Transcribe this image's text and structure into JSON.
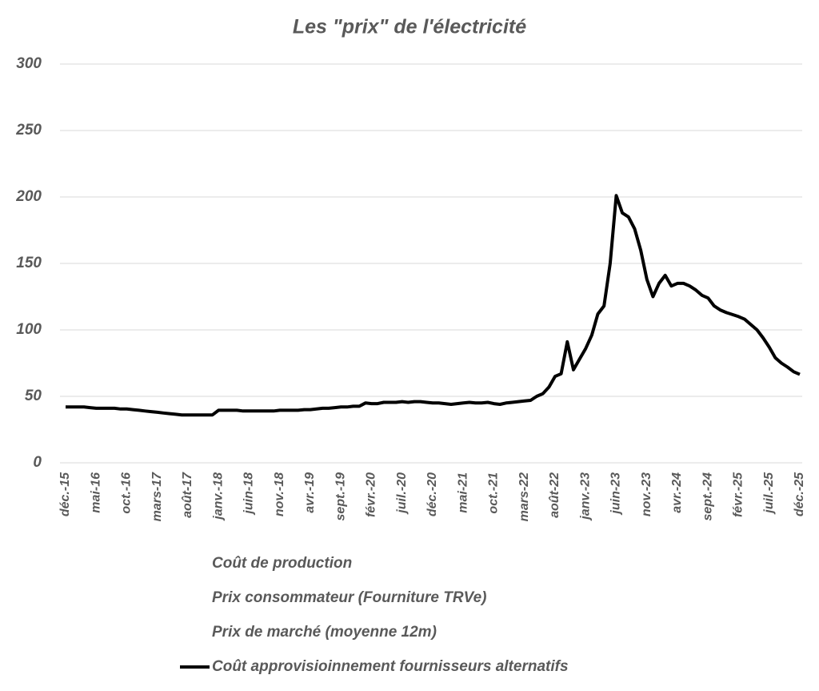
{
  "chart_data": {
    "type": "line",
    "title": "Les \"prix\" de l'électricité",
    "categories": [
      "déc.-15",
      null,
      null,
      null,
      null,
      "mai-16",
      null,
      null,
      null,
      null,
      "oct.-16",
      null,
      null,
      null,
      null,
      "mars-17",
      null,
      null,
      null,
      null,
      "août-17",
      null,
      null,
      null,
      null,
      "janv.-18",
      null,
      null,
      null,
      null,
      "juin-18",
      null,
      null,
      null,
      null,
      "nov.-18",
      null,
      null,
      null,
      null,
      "avr.-19",
      null,
      null,
      null,
      null,
      "sept.-19",
      null,
      null,
      null,
      null,
      "févr.-20",
      null,
      null,
      null,
      null,
      "juil.-20",
      null,
      null,
      null,
      null,
      "déc.-20",
      null,
      null,
      null,
      null,
      "mai-21",
      null,
      null,
      null,
      null,
      "oct.-21",
      null,
      null,
      null,
      null,
      "mars-22",
      null,
      null,
      null,
      null,
      "août-22",
      null,
      null,
      null,
      null,
      "janv.-23",
      null,
      null,
      null,
      null,
      "juin-23",
      null,
      null,
      null,
      null,
      "nov.-23",
      null,
      null,
      null,
      null,
      "avr.-24",
      null,
      null,
      null,
      null,
      "sept.-24",
      null,
      null,
      null,
      null,
      "févr.-25",
      null,
      null,
      null,
      null,
      "juil.-25",
      null,
      null,
      null,
      null,
      "déc.-25"
    ],
    "series": [
      {
        "name": "Coût de production",
        "color": "#ffffff",
        "values": [
          null,
          null,
          null,
          null,
          null,
          null,
          null,
          null,
          null,
          null,
          null,
          null,
          null,
          null,
          null,
          null,
          null,
          null,
          null,
          null,
          null,
          null,
          null,
          null,
          null,
          null,
          null,
          null,
          null,
          null,
          null,
          null,
          null,
          null,
          null,
          null,
          null,
          null,
          null,
          null,
          null,
          null,
          null,
          null,
          null,
          null,
          null,
          null,
          null,
          null,
          null,
          null,
          null,
          null,
          null,
          null,
          null,
          null,
          null,
          null,
          null,
          null,
          null,
          null,
          null,
          null,
          null,
          null,
          null,
          null,
          null,
          null,
          null,
          null,
          null,
          null,
          null,
          null,
          null,
          null,
          null,
          null,
          null,
          null,
          null,
          null,
          null,
          null,
          null,
          null,
          null,
          null,
          null,
          null,
          null,
          null,
          null,
          null,
          null,
          null,
          null,
          null,
          null,
          null,
          null,
          null,
          null,
          null,
          null,
          null,
          null,
          null,
          null,
          null,
          null,
          null,
          null,
          null,
          null,
          null,
          null
        ]
      },
      {
        "name": "Prix consommateur (Fourniture TRVe)",
        "color": "#ffffff",
        "values": [
          null,
          null,
          null,
          null,
          null,
          null,
          null,
          null,
          null,
          null,
          null,
          null,
          null,
          null,
          null,
          null,
          null,
          null,
          null,
          null,
          null,
          null,
          null,
          null,
          null,
          null,
          null,
          null,
          null,
          null,
          null,
          null,
          null,
          null,
          null,
          null,
          null,
          null,
          null,
          null,
          null,
          null,
          null,
          null,
          null,
          null,
          null,
          null,
          null,
          null,
          null,
          null,
          null,
          null,
          null,
          null,
          null,
          null,
          null,
          null,
          null,
          null,
          null,
          null,
          null,
          null,
          null,
          null,
          null,
          null,
          null,
          null,
          null,
          null,
          null,
          null,
          null,
          null,
          null,
          null,
          null,
          null,
          null,
          null,
          null,
          null,
          null,
          null,
          null,
          null,
          null,
          null,
          null,
          null,
          null,
          null,
          null,
          null,
          null,
          null,
          null,
          null,
          null,
          null,
          null,
          null,
          null,
          null,
          null,
          null,
          null,
          null,
          null,
          null,
          null,
          null,
          null,
          null,
          null,
          null,
          null
        ]
      },
      {
        "name": "Prix de marché (moyenne 12m)",
        "color": "#ffffff",
        "values": [
          null,
          null,
          null,
          null,
          null,
          null,
          null,
          null,
          null,
          null,
          null,
          null,
          null,
          null,
          null,
          null,
          null,
          null,
          null,
          null,
          null,
          null,
          null,
          null,
          null,
          null,
          null,
          null,
          null,
          null,
          null,
          null,
          null,
          null,
          null,
          null,
          null,
          null,
          null,
          null,
          null,
          null,
          null,
          null,
          null,
          null,
          null,
          null,
          null,
          null,
          null,
          null,
          null,
          null,
          null,
          null,
          null,
          null,
          null,
          null,
          null,
          null,
          null,
          null,
          null,
          null,
          null,
          null,
          null,
          null,
          null,
          null,
          null,
          null,
          null,
          null,
          null,
          null,
          null,
          null,
          null,
          null,
          null,
          null,
          null,
          null,
          null,
          null,
          null,
          null,
          null,
          null,
          null,
          null,
          null,
          null,
          null,
          null,
          null,
          null,
          null,
          null,
          null,
          null,
          null,
          null,
          null,
          null,
          null,
          null,
          null,
          null,
          null,
          null,
          null,
          null,
          null,
          null,
          null,
          null,
          null
        ]
      },
      {
        "name": "Coût approvisioinnement fournisseurs alternatifs",
        "color": "#000000",
        "values": [
          42,
          42,
          42,
          42,
          41.5,
          41,
          41,
          41,
          41,
          40.5,
          40.5,
          40,
          39.5,
          39,
          38.5,
          38,
          37.5,
          37,
          36.5,
          36,
          36,
          36,
          36,
          36,
          36,
          39.5,
          39.5,
          39.5,
          39.5,
          39,
          39,
          39,
          39,
          39,
          39,
          39.5,
          39.5,
          39.5,
          39.5,
          40,
          40,
          40.5,
          41,
          41,
          41.5,
          42,
          42,
          42.5,
          42.5,
          45,
          44.5,
          44.5,
          45.5,
          45.5,
          45.5,
          46,
          45.5,
          46,
          46,
          45.5,
          45,
          45,
          44.5,
          44,
          44.5,
          45,
          45.5,
          45,
          45,
          45.5,
          44.5,
          44,
          45,
          45.5,
          46,
          46.5,
          47,
          50,
          52,
          57,
          65,
          67,
          91,
          70,
          78,
          86,
          96,
          112,
          118,
          150,
          201,
          188,
          185,
          176,
          160,
          138,
          125,
          135,
          141,
          133,
          135,
          135,
          133,
          130,
          126,
          124,
          118,
          115,
          113,
          111.5,
          110,
          108,
          104,
          100,
          94,
          87,
          79,
          75,
          72,
          68.5,
          66.5
        ]
      }
    ],
    "ylim": [
      0,
      300
    ],
    "yticks": [
      0,
      50,
      100,
      150,
      200,
      250,
      300
    ],
    "grid": true
  }
}
